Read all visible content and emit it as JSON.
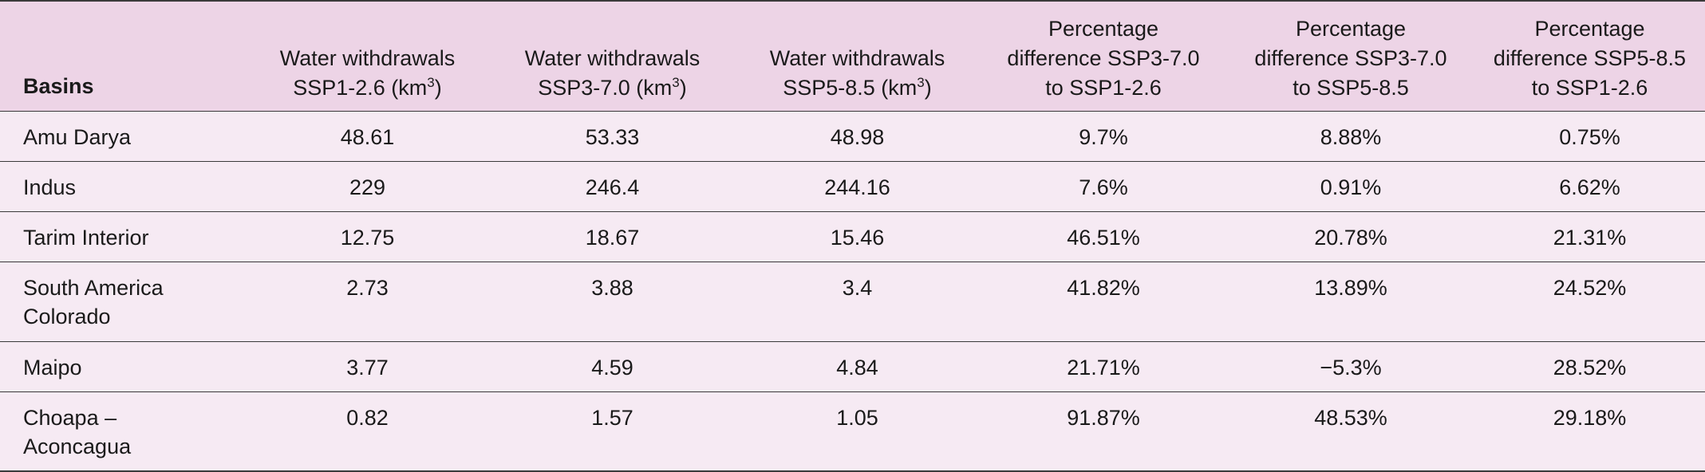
{
  "table": {
    "headers": [
      {
        "label": "Basins"
      },
      {
        "label": "Water withdrawals",
        "label2": "SSP1-2.6 (km",
        "sup": "3",
        "close": ")"
      },
      {
        "label": "Water withdrawals",
        "label2": "SSP3-7.0 (km",
        "sup": "3",
        "close": ")"
      },
      {
        "label": "Water withdrawals",
        "label2": "SSP5-8.5 (km",
        "sup": "3",
        "close": ")"
      },
      {
        "label": "Percentage",
        "label2": "difference SSP3-7.0",
        "label3": "to SSP1-2.6"
      },
      {
        "label": "Percentage",
        "label2": "difference SSP3-7.0",
        "label3": "to SSP5-8.5"
      },
      {
        "label": "Percentage",
        "label2": "difference SSP5-8.5",
        "label3": "to SSP1-2.6"
      }
    ],
    "rows": [
      {
        "basin": "Amu Darya",
        "basin2": "",
        "values": [
          "48.61",
          "53.33",
          "48.98",
          "9.7%",
          "8.88%",
          "0.75%"
        ]
      },
      {
        "basin": "Indus",
        "basin2": "",
        "values": [
          "229",
          "246.4",
          "244.16",
          "7.6%",
          "0.91%",
          "6.62%"
        ]
      },
      {
        "basin": "Tarim Interior",
        "basin2": "",
        "values": [
          "12.75",
          "18.67",
          "15.46",
          "46.51%",
          "20.78%",
          "21.31%"
        ]
      },
      {
        "basin": "South America",
        "basin2": "Colorado",
        "values": [
          "2.73",
          "3.88",
          "3.4",
          "41.82%",
          "13.89%",
          "24.52%"
        ]
      },
      {
        "basin": "Maipo",
        "basin2": "",
        "values": [
          "3.77",
          "4.59",
          "4.84",
          "21.71%",
          "−5.3%",
          "28.52%"
        ]
      },
      {
        "basin": "Choapa –",
        "basin2": "Aconcagua",
        "values": [
          "0.82",
          "1.57",
          "1.05",
          "91.87%",
          "48.53%",
          "29.18%"
        ]
      }
    ]
  }
}
